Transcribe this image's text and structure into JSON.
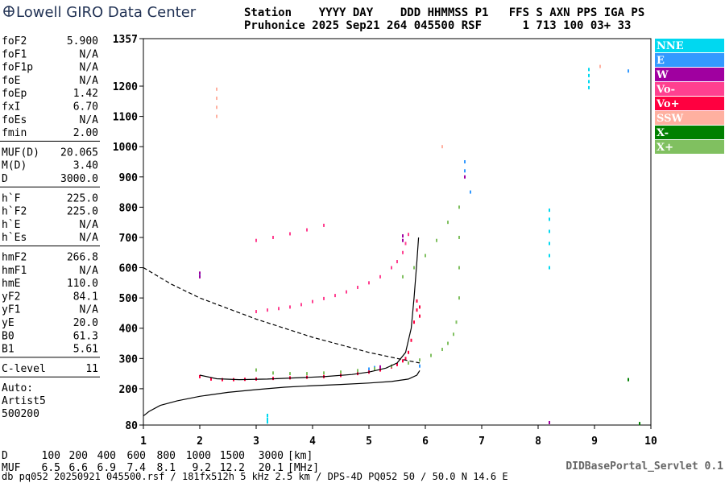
{
  "header": {
    "logo": "Lowell GIRO Data Center",
    "line1": "Station    YYYY DAY    DDD HHMMSS P1   FFS S AXN PPS IGA PS",
    "line2": "Pruhonice 2025 Sep21 264 045500 RSF      1 713 100 03+ 33"
  },
  "parameter_groups": [
    [
      [
        "foF2",
        "5.900"
      ],
      [
        "foF1",
        "N/A"
      ],
      [
        "foF1p",
        "N/A"
      ],
      [
        "foE",
        "N/A"
      ],
      [
        "foEp",
        "1.42"
      ],
      [
        "fxI",
        "6.70"
      ],
      [
        "foEs",
        "N/A"
      ],
      [
        "fmin",
        "2.00"
      ]
    ],
    [
      [
        "MUF(D)",
        "20.065"
      ],
      [
        "M(D)",
        "3.40"
      ],
      [
        "D",
        "3000.0"
      ]
    ],
    [
      [
        "h`F",
        "225.0"
      ],
      [
        "h`F2",
        "225.0"
      ],
      [
        "h`E",
        "N/A"
      ],
      [
        "h`Es",
        "N/A"
      ]
    ],
    [
      [
        "hmF2",
        "266.8"
      ],
      [
        "hmF1",
        "N/A"
      ],
      [
        "hmE",
        "110.0"
      ],
      [
        "yF2",
        "84.1"
      ],
      [
        "yF1",
        "N/A"
      ],
      [
        "yE",
        "20.0"
      ],
      [
        "B0",
        "61.3"
      ],
      [
        "B1",
        "5.61"
      ]
    ],
    [
      [
        "C-level",
        "11"
      ]
    ]
  ],
  "notes": [
    "Auto:",
    "Artist5",
    "500200"
  ],
  "distance_table": [
    [
      "D",
      "100",
      "200",
      "400",
      "600",
      "800",
      "1000",
      "1500",
      "3000",
      "[km]"
    ],
    [
      "MUF",
      "6.5",
      "6.6",
      "6.9",
      "7.4",
      "8.1",
      "9.2",
      "12.2",
      "20.1",
      "[MHz]"
    ]
  ],
  "footer": "db pq052 20250921 045500.rsf / 181fx512h 5 kHz 2.5 km / DPS-4D PQ052 50 / 50.0 N 14.6 E",
  "servlet": "DIDBasePortal_Servlet 0.1",
  "chart_data": {
    "type": "scatter",
    "xlim": [
      1,
      10
    ],
    "xticks": [
      1,
      2,
      3,
      4,
      5,
      6,
      7,
      8,
      9,
      10
    ],
    "ylim": [
      80,
      1357
    ],
    "yticks": [
      80,
      200,
      300,
      400,
      500,
      600,
      700,
      800,
      900,
      1000,
      1100,
      1200,
      1357
    ],
    "series": [
      {
        "name": "NNE",
        "color": "#00d8f0",
        "x": [
          8.9,
          8.9,
          8.9,
          8.9,
          8.2,
          8.2,
          8.2,
          8.2,
          8.2,
          8.2,
          3.2,
          3.2,
          3.2,
          2.0
        ],
        "y": [
          1195,
          1215,
          1235,
          1255,
          600,
          640,
          680,
          720,
          760,
          790,
          90,
          100,
          112,
          575
        ]
      },
      {
        "name": "E",
        "color": "#3399ff",
        "x": [
          5.0,
          5.1,
          6.7,
          6.7,
          6.8,
          9.6,
          5.9
        ],
        "y": [
          265,
          270,
          920,
          950,
          850,
          1250,
          275
        ]
      },
      {
        "name": "W",
        "color": "#a000a0",
        "x": [
          5.6,
          5.6,
          6.7,
          2.0,
          2.0,
          8.2,
          5.2
        ],
        "y": [
          690,
          705,
          900,
          570,
          582,
          88,
          272
        ]
      },
      {
        "name": "Vo-",
        "color": "#ff4090",
        "x": [
          3.0,
          3.2,
          3.4,
          3.6,
          3.8,
          4.0,
          4.2,
          4.4,
          4.6,
          4.8,
          5.0,
          5.2,
          5.4,
          5.5,
          5.6,
          5.65,
          5.7,
          3.0,
          3.3,
          3.6,
          3.9,
          4.2
        ],
        "y": [
          455,
          460,
          465,
          470,
          478,
          488,
          498,
          508,
          520,
          535,
          550,
          570,
          600,
          620,
          650,
          680,
          710,
          690,
          700,
          712,
          725,
          740
        ]
      },
      {
        "name": "Vo+",
        "color": "#ff0040",
        "x": [
          2.0,
          2.2,
          2.4,
          2.6,
          2.8,
          3.0,
          3.3,
          3.6,
          3.9,
          4.2,
          4.5,
          4.8,
          5.0,
          5.2,
          5.4,
          5.5,
          5.6,
          5.65,
          5.7,
          5.75,
          5.8,
          5.85,
          5.85,
          5.9,
          5.9
        ],
        "y": [
          240,
          232,
          230,
          230,
          231,
          232,
          234,
          236,
          238,
          240,
          244,
          250,
          255,
          262,
          272,
          280,
          292,
          300,
          320,
          360,
          420,
          460,
          490,
          470,
          440
        ]
      },
      {
        "name": "SSW",
        "color": "#ffb0a0",
        "x": [
          2.3,
          2.3,
          2.3,
          2.3,
          9.1,
          6.3
        ],
        "y": [
          1100,
          1130,
          1160,
          1190,
          1265,
          1000
        ]
      },
      {
        "name": "X-",
        "color": "#008000",
        "x": [
          9.8,
          9.6
        ],
        "y": [
          85,
          230
        ]
      },
      {
        "name": "X+",
        "color": "#80c060",
        "x": [
          3.0,
          3.3,
          3.6,
          3.9,
          4.2,
          4.5,
          4.8,
          5.1,
          5.4,
          5.7,
          5.9,
          6.1,
          6.3,
          6.4,
          6.5,
          6.55,
          6.6,
          6.6,
          6.6,
          6.6,
          5.6,
          5.8,
          6.0,
          6.2,
          6.4
        ],
        "y": [
          262,
          252,
          250,
          250,
          252,
          255,
          260,
          266,
          275,
          285,
          295,
          310,
          330,
          350,
          380,
          420,
          500,
          600,
          700,
          800,
          570,
          600,
          640,
          690,
          750
        ]
      }
    ],
    "lines": [
      {
        "style": "solid",
        "color": "#000000",
        "x": [
          1.0,
          1.1,
          1.3,
          1.6,
          2.0,
          2.5,
          3.0,
          3.5,
          4.0,
          4.5,
          5.0,
          5.4,
          5.7,
          5.85,
          5.9
        ],
        "y": [
          110,
          125,
          145,
          160,
          175,
          188,
          197,
          205,
          210,
          214,
          219,
          224,
          232,
          245,
          260
        ]
      },
      {
        "style": "solid",
        "color": "#000000",
        "x": [
          2.0,
          2.3,
          2.7,
          3.2,
          3.7,
          4.2,
          4.7,
          5.0,
          5.3,
          5.5,
          5.65,
          5.75,
          5.8,
          5.85,
          5.88
        ],
        "y": [
          245,
          233,
          230,
          232,
          236,
          240,
          247,
          255,
          268,
          285,
          320,
          400,
          500,
          620,
          700
        ]
      },
      {
        "style": "dashed",
        "color": "#000000",
        "x": [
          1.0,
          1.5,
          2.0,
          2.5,
          3.0,
          3.5,
          4.0,
          4.5,
          5.0,
          5.5,
          5.9
        ],
        "y": [
          600,
          545,
          500,
          465,
          430,
          400,
          370,
          345,
          320,
          300,
          285
        ]
      }
    ]
  }
}
